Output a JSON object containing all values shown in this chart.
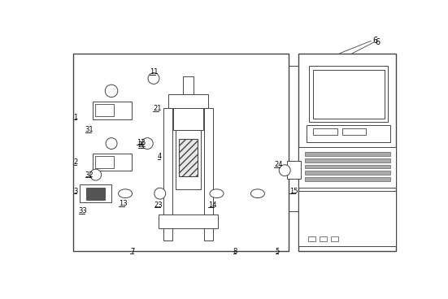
{
  "fig_width": 5.51,
  "fig_height": 3.68,
  "dpi": 100,
  "bg_color": "#ffffff",
  "lc": "#444444",
  "lw": 0.7
}
